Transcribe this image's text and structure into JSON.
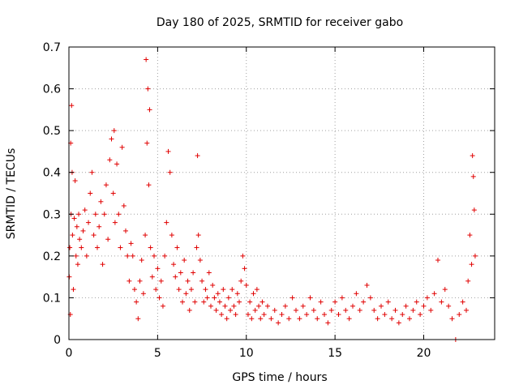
{
  "chart_data": {
    "type": "scatter",
    "title": "Day 180 of 2025, SRMTID for receiver gabo",
    "xlabel": "GPS time / hours",
    "ylabel": "SRMTID / TECUs",
    "xlim": [
      0,
      24
    ],
    "ylim": [
      0,
      0.7
    ],
    "xticks": [
      "0",
      "5",
      "10",
      "15",
      "20"
    ],
    "yticks": [
      "0",
      "0.1",
      "0.2",
      "0.3",
      "0.4",
      "0.5",
      "0.6",
      "0.7"
    ],
    "grid": true,
    "marker": "+",
    "color": "#e00000",
    "series": [
      {
        "name": "SRMTID",
        "points": [
          [
            0.02,
            0.15
          ],
          [
            0.05,
            0.22
          ],
          [
            0.08,
            0.06
          ],
          [
            0.1,
            0.47
          ],
          [
            0.12,
            0.3
          ],
          [
            0.15,
            0.56
          ],
          [
            0.18,
            0.4
          ],
          [
            0.2,
            0.25
          ],
          [
            0.25,
            0.12
          ],
          [
            0.3,
            0.29
          ],
          [
            0.35,
            0.38
          ],
          [
            0.4,
            0.2
          ],
          [
            0.45,
            0.27
          ],
          [
            0.5,
            0.18
          ],
          [
            0.55,
            0.3
          ],
          [
            0.6,
            0.24
          ],
          [
            0.7,
            0.22
          ],
          [
            0.8,
            0.26
          ],
          [
            0.9,
            0.31
          ],
          [
            1.0,
            0.2
          ],
          [
            1.1,
            0.28
          ],
          [
            1.2,
            0.35
          ],
          [
            1.3,
            0.4
          ],
          [
            1.4,
            0.25
          ],
          [
            1.5,
            0.3
          ],
          [
            1.6,
            0.22
          ],
          [
            1.7,
            0.27
          ],
          [
            1.8,
            0.33
          ],
          [
            1.9,
            0.18
          ],
          [
            2.0,
            0.3
          ],
          [
            2.1,
            0.37
          ],
          [
            2.2,
            0.24
          ],
          [
            2.3,
            0.43
          ],
          [
            2.4,
            0.48
          ],
          [
            2.5,
            0.35
          ],
          [
            2.55,
            0.5
          ],
          [
            2.6,
            0.28
          ],
          [
            2.7,
            0.42
          ],
          [
            2.8,
            0.3
          ],
          [
            2.9,
            0.22
          ],
          [
            3.0,
            0.46
          ],
          [
            3.1,
            0.32
          ],
          [
            3.2,
            0.26
          ],
          [
            3.3,
            0.2
          ],
          [
            3.4,
            0.14
          ],
          [
            3.5,
            0.23
          ],
          [
            3.6,
            0.2
          ],
          [
            3.7,
            0.12
          ],
          [
            3.8,
            0.09
          ],
          [
            3.9,
            0.05
          ],
          [
            4.0,
            0.14
          ],
          [
            4.1,
            0.19
          ],
          [
            4.2,
            0.11
          ],
          [
            4.3,
            0.25
          ],
          [
            4.35,
            0.67
          ],
          [
            4.4,
            0.47
          ],
          [
            4.45,
            0.6
          ],
          [
            4.5,
            0.37
          ],
          [
            4.55,
            0.55
          ],
          [
            4.6,
            0.22
          ],
          [
            4.7,
            0.15
          ],
          [
            4.8,
            0.2
          ],
          [
            4.9,
            0.12
          ],
          [
            5.0,
            0.17
          ],
          [
            5.1,
            0.1
          ],
          [
            5.2,
            0.14
          ],
          [
            5.3,
            0.08
          ],
          [
            5.4,
            0.2
          ],
          [
            5.5,
            0.28
          ],
          [
            5.6,
            0.45
          ],
          [
            5.7,
            0.4
          ],
          [
            5.8,
            0.25
          ],
          [
            5.9,
            0.18
          ],
          [
            6.0,
            0.15
          ],
          [
            6.1,
            0.22
          ],
          [
            6.2,
            0.12
          ],
          [
            6.3,
            0.16
          ],
          [
            6.4,
            0.09
          ],
          [
            6.5,
            0.19
          ],
          [
            6.6,
            0.11
          ],
          [
            6.7,
            0.14
          ],
          [
            6.8,
            0.07
          ],
          [
            6.9,
            0.12
          ],
          [
            7.0,
            0.16
          ],
          [
            7.1,
            0.09
          ],
          [
            7.2,
            0.22
          ],
          [
            7.25,
            0.44
          ],
          [
            7.3,
            0.25
          ],
          [
            7.4,
            0.19
          ],
          [
            7.5,
            0.14
          ],
          [
            7.6,
            0.09
          ],
          [
            7.7,
            0.12
          ],
          [
            7.8,
            0.1
          ],
          [
            7.9,
            0.16
          ],
          [
            8.0,
            0.08
          ],
          [
            8.1,
            0.13
          ],
          [
            8.2,
            0.1
          ],
          [
            8.3,
            0.07
          ],
          [
            8.4,
            0.11
          ],
          [
            8.5,
            0.09
          ],
          [
            8.6,
            0.06
          ],
          [
            8.7,
            0.12
          ],
          [
            8.8,
            0.08
          ],
          [
            8.9,
            0.05
          ],
          [
            9.0,
            0.1
          ],
          [
            9.1,
            0.07
          ],
          [
            9.2,
            0.12
          ],
          [
            9.3,
            0.08
          ],
          [
            9.4,
            0.06
          ],
          [
            9.5,
            0.11
          ],
          [
            9.6,
            0.09
          ],
          [
            9.7,
            0.14
          ],
          [
            9.8,
            0.2
          ],
          [
            9.9,
            0.17
          ],
          [
            10.0,
            0.13
          ],
          [
            10.1,
            0.06
          ],
          [
            10.2,
            0.09
          ],
          [
            10.3,
            0.05
          ],
          [
            10.4,
            0.11
          ],
          [
            10.5,
            0.07
          ],
          [
            10.6,
            0.12
          ],
          [
            10.7,
            0.08
          ],
          [
            10.8,
            0.05
          ],
          [
            10.9,
            0.09
          ],
          [
            11.0,
            0.06
          ],
          [
            11.2,
            0.08
          ],
          [
            11.4,
            0.05
          ],
          [
            11.6,
            0.07
          ],
          [
            11.8,
            0.04
          ],
          [
            12.0,
            0.06
          ],
          [
            12.2,
            0.08
          ],
          [
            12.4,
            0.05
          ],
          [
            12.6,
            0.1
          ],
          [
            12.8,
            0.07
          ],
          [
            13.0,
            0.05
          ],
          [
            13.2,
            0.08
          ],
          [
            13.4,
            0.06
          ],
          [
            13.6,
            0.1
          ],
          [
            13.8,
            0.07
          ],
          [
            14.0,
            0.05
          ],
          [
            14.2,
            0.09
          ],
          [
            14.4,
            0.06
          ],
          [
            14.6,
            0.04
          ],
          [
            14.8,
            0.07
          ],
          [
            15.0,
            0.09
          ],
          [
            15.2,
            0.06
          ],
          [
            15.4,
            0.1
          ],
          [
            15.6,
            0.07
          ],
          [
            15.8,
            0.05
          ],
          [
            16.0,
            0.08
          ],
          [
            16.2,
            0.11
          ],
          [
            16.4,
            0.07
          ],
          [
            16.6,
            0.09
          ],
          [
            16.8,
            0.13
          ],
          [
            17.0,
            0.1
          ],
          [
            17.2,
            0.07
          ],
          [
            17.4,
            0.05
          ],
          [
            17.6,
            0.08
          ],
          [
            17.8,
            0.06
          ],
          [
            18.0,
            0.09
          ],
          [
            18.2,
            0.05
          ],
          [
            18.4,
            0.07
          ],
          [
            18.6,
            0.04
          ],
          [
            18.8,
            0.06
          ],
          [
            19.0,
            0.08
          ],
          [
            19.2,
            0.05
          ],
          [
            19.4,
            0.07
          ],
          [
            19.6,
            0.09
          ],
          [
            19.8,
            0.06
          ],
          [
            20.0,
            0.08
          ],
          [
            20.2,
            0.1
          ],
          [
            20.4,
            0.07
          ],
          [
            20.6,
            0.11
          ],
          [
            20.8,
            0.19
          ],
          [
            21.0,
            0.09
          ],
          [
            21.2,
            0.12
          ],
          [
            21.4,
            0.08
          ],
          [
            21.6,
            0.05
          ],
          [
            21.8,
            0.0
          ],
          [
            22.0,
            0.06
          ],
          [
            22.2,
            0.09
          ],
          [
            22.4,
            0.07
          ],
          [
            22.5,
            0.14
          ],
          [
            22.6,
            0.25
          ],
          [
            22.7,
            0.18
          ],
          [
            22.75,
            0.44
          ],
          [
            22.8,
            0.39
          ],
          [
            22.85,
            0.31
          ],
          [
            22.9,
            0.2
          ]
        ]
      }
    ]
  }
}
